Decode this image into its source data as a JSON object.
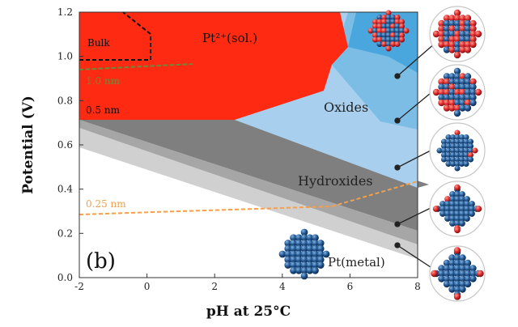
{
  "figure": {
    "panel_label": "(b)",
    "x_axis_title": "pH at 25°C",
    "y_axis_title": "Potential (V)",
    "x_ticks": [
      "-2",
      "0",
      "2",
      "4",
      "6",
      "8"
    ],
    "y_ticks": [
      "0.0",
      "0.2",
      "0.4",
      "0.6",
      "0.8",
      "1.0",
      "1.2"
    ],
    "regions": {
      "dissolved": "Pt²⁺(sol.)",
      "oxides": "Oxides",
      "hydroxides": "Hydroxides",
      "metal": "Pt(metal)"
    },
    "size_labels": {
      "bulk": "Bulk",
      "nm_1_0": "1.0 nm",
      "nm_0_5": "0.5 nm",
      "nm_0_25": "0.25 nm"
    },
    "colors": {
      "dissolved_red": "#ff2a12",
      "oxide_dark_blue": "#49a7dd",
      "oxide_mid_blue": "#7cbde6",
      "oxide_light_blue": "#a8cfee",
      "hydroxide_dark": "#7f7f7f",
      "hydroxide_mid": "#a6a6a6",
      "hydroxide_light": "#d0d0d0",
      "bulk_line": "#111111",
      "nm_1_0_line": "#6e8a3a",
      "nm_0_25_line": "#f0a050",
      "cluster_blue": "#1d4f86",
      "cluster_red": "#d8262a"
    },
    "cluster_icons": [
      "pt-cluster-oxide-rich",
      "pt-cluster-oxide-partial",
      "pt-cluster-hydroxide",
      "pt-cluster-partial-hydroxide",
      "pt-cluster-metal"
    ]
  }
}
